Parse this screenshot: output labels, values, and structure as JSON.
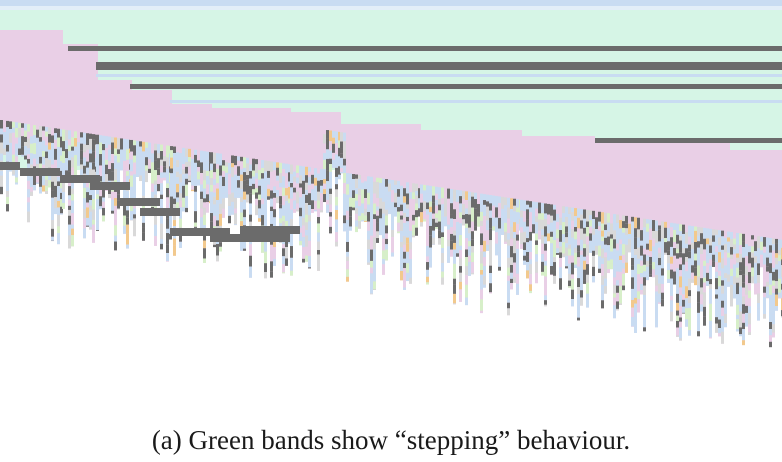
{
  "caption": "(a) Green bands show “stepping” behaviour.",
  "colors": {
    "green": "#d6f5e6",
    "pink": "#e9cfe6",
    "gray": "#6b6b6b",
    "blue": "#c9dcf2",
    "light_gray": "#d9d9d9",
    "orange": "#f2c98d",
    "yellow_green": "#d7efc9",
    "background": "#ffffff"
  }
}
